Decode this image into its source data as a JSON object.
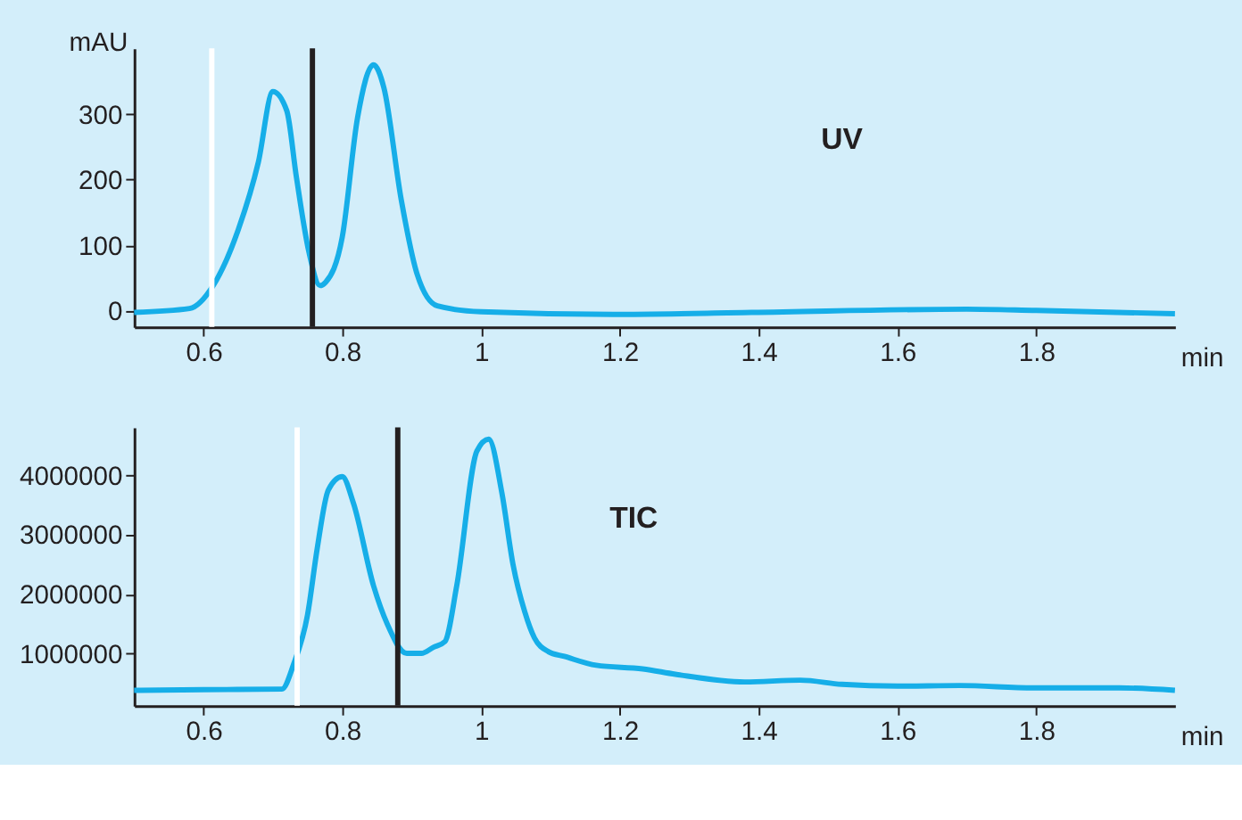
{
  "chart_data": [
    {
      "type": "line",
      "ylabel": "mAU",
      "xlabel": "min",
      "annotations": [
        "UV"
      ],
      "xlim": [
        0.5,
        2.0
      ],
      "xticks": [
        0.6,
        0.8,
        1,
        1.2,
        1.4,
        1.6,
        1.8
      ],
      "ylim": [
        -25,
        400
      ],
      "yticks": [
        0,
        100,
        200,
        300
      ],
      "grid": false,
      "series": [
        {
          "color": "#16aee8",
          "x": [
            0.5,
            0.58,
            0.614,
            0.65,
            0.679,
            0.7,
            0.72,
            0.734,
            0.752,
            0.768,
            0.776,
            0.8,
            0.822,
            0.845,
            0.86,
            0.885,
            0.908,
            0.937,
            1.0,
            1.19,
            1.39,
            1.7,
            1.8,
            2.0
          ],
          "values": [
            -3,
            3,
            38,
            123,
            226,
            334,
            305,
            203,
            89,
            38,
            43,
            112,
            294,
            375,
            340,
            169,
            55,
            7,
            -2,
            -6,
            -3,
            2,
            0,
            -5
          ]
        }
      ],
      "ref_lines": [
        {
          "axis": "x",
          "value": 0.612,
          "color": "#ffffff"
        },
        {
          "axis": "x",
          "value": 0.757,
          "color": "#231f20"
        }
      ]
    },
    {
      "type": "line",
      "xlabel": "min",
      "annotations": [
        "TIC"
      ],
      "xlim": [
        0.5,
        2.0
      ],
      "xticks": [
        0.6,
        0.8,
        1,
        1.2,
        1.4,
        1.6,
        1.8
      ],
      "ylim": [
        120000,
        4800000
      ],
      "yticks": [
        1000000,
        2000000,
        3000000,
        4000000
      ],
      "grid": false,
      "series": [
        {
          "color": "#16aee8",
          "x": [
            0.5,
            0.6,
            0.713,
            0.73,
            0.75,
            0.764,
            0.78,
            0.8,
            0.816,
            0.845,
            0.865,
            0.893,
            0.914,
            0.931,
            0.948,
            0.965,
            0.994,
            1.011,
            1.03,
            1.046,
            1.063,
            1.077,
            1.097,
            1.12,
            1.166,
            1.233,
            1.28,
            1.38,
            1.46,
            1.52,
            1.6,
            1.69,
            1.796,
            1.92,
            2.0
          ],
          "values": [
            380000,
            390000,
            400000,
            820000,
            1650000,
            2770000,
            3750000,
            3970000,
            3530000,
            2140000,
            1490000,
            1000000,
            1000000,
            1100000,
            1200000,
            2140000,
            4400000,
            4600000,
            3700000,
            2500000,
            1700000,
            1260000,
            1030000,
            950000,
            800000,
            740000,
            650000,
            520000,
            550000,
            480000,
            450000,
            460000,
            420000,
            420000,
            380000
          ]
        }
      ],
      "ref_lines": [
        {
          "axis": "x",
          "value": 0.735,
          "color": "#ffffff"
        },
        {
          "axis": "x",
          "value": 0.88,
          "color": "#231f20"
        }
      ]
    }
  ]
}
